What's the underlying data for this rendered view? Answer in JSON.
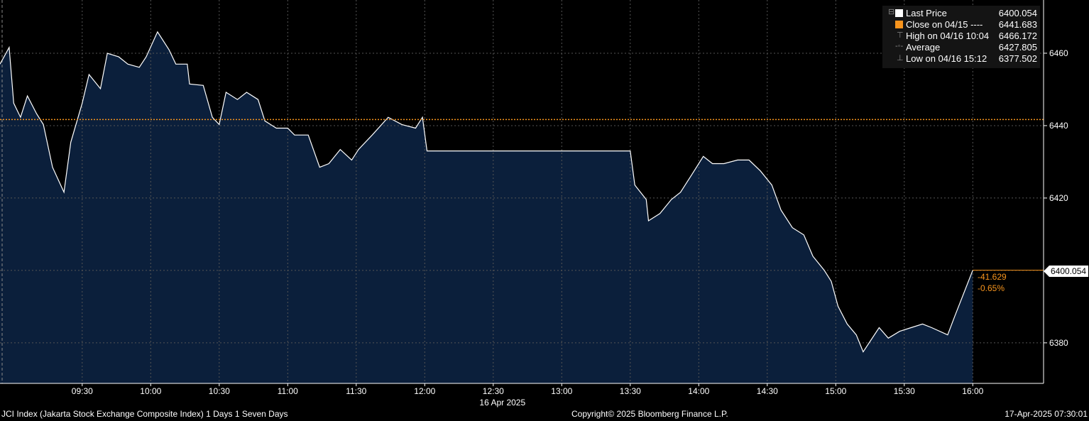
{
  "chart_data": {
    "type": "area",
    "ylim": [
      6368.8,
      6474.7
    ],
    "xlim": [
      "08:54",
      "16:31"
    ],
    "grid": true,
    "legend_position": "top-right",
    "date_label": "16 Apr 2025",
    "x_ticks": [
      "09:30",
      "10:00",
      "10:30",
      "11:00",
      "11:30",
      "12:00",
      "12:30",
      "13:00",
      "13:30",
      "14:00",
      "14:30",
      "15:00",
      "15:30",
      "16:00"
    ],
    "y_ticks": [
      6380,
      6420,
      6440,
      6460
    ],
    "y_grid": [
      6380,
      6400,
      6420,
      6440,
      6460
    ],
    "colors": {
      "series_line": "#ffffff",
      "area_fill": "#0b1f3b",
      "close_line": "#f7941d",
      "grid": "#555555",
      "change_text": "#f7941d"
    },
    "close_value": 6441.683,
    "last_value": 6400.054,
    "last_value_label": "6400.054",
    "change": "-41.629",
    "change_pct": "-0.65%",
    "series": [
      {
        "x": [
          "08:54",
          "08:58",
          "09:00",
          "09:03",
          "09:06",
          "09:10",
          "09:13",
          "09:17",
          "09:22",
          "09:25",
          "09:30",
          "09:33",
          "09:38",
          "09:41",
          "09:46",
          "09:50",
          "09:55",
          "09:58",
          "10:03",
          "10:08",
          "10:11",
          "10:16",
          "10:17",
          "10:23",
          "10:27",
          "10:30",
          "10:33",
          "10:38",
          "10:42",
          "10:47",
          "10:50",
          "10:55",
          "11:00",
          "11:03",
          "11:09",
          "11:14",
          "11:18",
          "11:23",
          "11:28",
          "11:31",
          "11:37",
          "11:44",
          "11:50",
          "11:56",
          "11:59",
          "12:01",
          "13:30",
          "13:32",
          "13:37",
          "13:38",
          "13:43",
          "13:48",
          "13:52",
          "13:57",
          "14:02",
          "14:06",
          "14:11",
          "14:17",
          "14:22",
          "14:27",
          "14:32",
          "14:36",
          "14:41",
          "14:46",
          "14:50",
          "14:55",
          "14:58",
          "15:01",
          "15:05",
          "15:09",
          "15:12",
          "15:19",
          "15:23",
          "15:28",
          "15:33",
          "15:38",
          "15:42",
          "15:49",
          "15:52",
          "16:00"
        ],
        "values": [
          6457.0,
          6461.6,
          6446.2,
          6442.3,
          6448.2,
          6443.3,
          6440.3,
          6428.5,
          6421.6,
          6435.4,
          6446.2,
          6454.1,
          6450.2,
          6460.0,
          6459.0,
          6457.0,
          6456.1,
          6459.0,
          6465.9,
          6461.0,
          6457.0,
          6457.0,
          6451.5,
          6451.1,
          6442.3,
          6440.3,
          6449.2,
          6447.2,
          6449.2,
          6447.2,
          6441.3,
          6439.3,
          6439.3,
          6437.4,
          6437.4,
          6428.5,
          6429.5,
          6433.4,
          6430.5,
          6433.4,
          6437.4,
          6442.3,
          6440.3,
          6439.3,
          6442.3,
          6433.0,
          6433.0,
          6423.6,
          6419.6,
          6413.7,
          6415.7,
          6419.6,
          6421.6,
          6426.5,
          6431.5,
          6429.5,
          6429.5,
          6430.5,
          6430.5,
          6427.5,
          6423.6,
          6416.7,
          6411.8,
          6409.8,
          6403.9,
          6400.0,
          6397.0,
          6390.1,
          6385.2,
          6382.2,
          6377.5,
          6384.2,
          6381.3,
          6383.2,
          6384.2,
          6385.2,
          6384.2,
          6382.2,
          6387.2,
          6400.054
        ]
      }
    ]
  },
  "legend": [
    {
      "label": "Last Price",
      "value": "6400.054",
      "swatch": "#ffffff",
      "icon": "square"
    },
    {
      "label": "Close on 04/15 ----",
      "value": "6441.683",
      "swatch": "#f7941d",
      "icon": "square"
    },
    {
      "label": "High on 04/16 10:04",
      "value": "6466.172",
      "icon": "high-marker"
    },
    {
      "label": "Average",
      "value": "6427.805",
      "icon": "average-marker"
    },
    {
      "label": "Low on 04/16 15:12",
      "value": "6377.502",
      "icon": "low-marker"
    }
  ],
  "footer": {
    "left": "JCI Index (Jakarta Stock Exchange Composite Index) 1 Days 1 Seven Days",
    "center": "Copyright© 2025 Bloomberg Finance L.P.",
    "right": "17-Apr-2025 07:30:01"
  }
}
